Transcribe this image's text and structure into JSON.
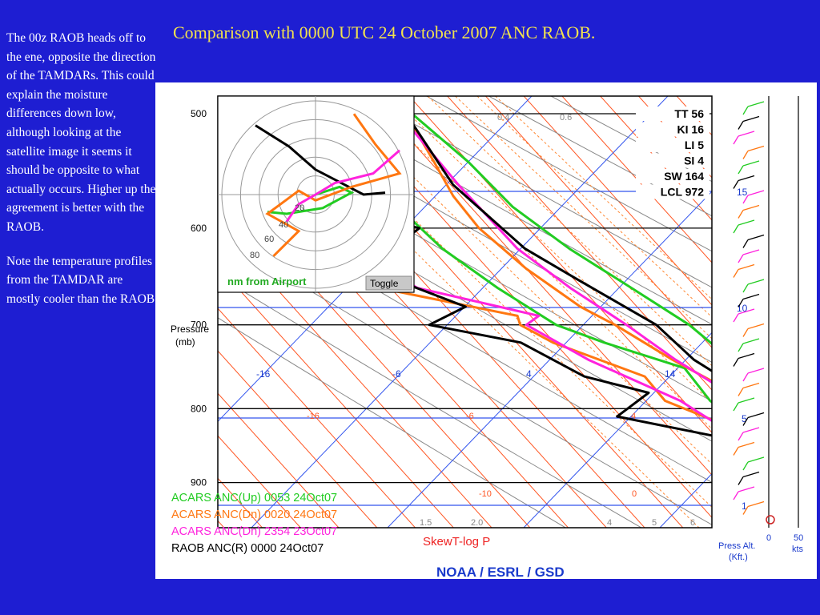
{
  "slide": {
    "title": "Comparison with 0000 UTC 24 October 2007 ANC RAOB.",
    "note1": "The 00z RAOB heads off to the ene, opposite the direction of the TAMDARs.  This could explain the moisture differences down low, although looking at the satellite image it seems it should be opposite to what actually occurs.  Higher up the agreement is better with the RAOB.",
    "note2": "Note the temperature profiles from the TAMDAR are mostly cooler than the RAOB."
  },
  "colors": {
    "background": "#1e1ed2",
    "title": "#f2e24e",
    "raob": "#000000",
    "acars_up": "#22cc22",
    "acars_dn_0020": "#ff7711",
    "acars_dn_2354": "#ff22dd",
    "isotherm": "#ff5522",
    "dry_adiabat": "#888888",
    "mixing_ratio": "#ff8833",
    "height_line": "#3355ee",
    "pressure_line": "#000000"
  },
  "chart_data": {
    "type": "line",
    "subtype": "skew-T log-P sounding",
    "title": "SkewT-log P",
    "footer": "NOAA / ESRL / GSD",
    "ylabel": "Pressure",
    "ylabel_unit": "(mb)",
    "ylim": [
      950,
      480
    ],
    "pressure_ticks": [
      "500",
      "600",
      "700",
      "800",
      "900"
    ],
    "isotherm_labels": [
      "-16",
      "-6",
      "4",
      "14"
    ],
    "mixing_ratio_labels": [
      "0.4",
      "0.6",
      "1.0",
      "1.5",
      "2.0",
      "4",
      "5",
      "6"
    ],
    "temp_labels_lower": [
      "-16",
      "-6",
      "4",
      "-10",
      "0"
    ],
    "indices": [
      {
        "name": "TT",
        "value": "56"
      },
      {
        "name": "KI",
        "value": "16"
      },
      {
        "name": "LI",
        "value": "5"
      },
      {
        "name": "SI",
        "value": "4"
      },
      {
        "name": "SW",
        "value": "164"
      },
      {
        "name": "LCL",
        "value": "972"
      }
    ],
    "hodograph": {
      "caption": "nm from Airport",
      "toggle_label": "Toggle",
      "range_labels": [
        "20",
        "40",
        "60",
        "80"
      ],
      "tracks": [
        {
          "name": "RAOB",
          "color": "#000000",
          "points": [
            [
              -50,
              -72
            ],
            [
              -22,
              -50
            ],
            [
              0,
              -26
            ],
            [
              40,
              0
            ],
            [
              58,
              -2
            ]
          ]
        },
        {
          "name": "ACARS Up",
          "color": "#22cc22",
          "points": [
            [
              0,
              0
            ],
            [
              20,
              -8
            ],
            [
              30,
              -2
            ],
            [
              6,
              14
            ],
            [
              -24,
              20
            ],
            [
              -40,
              18
            ]
          ]
        },
        {
          "name": "ACARS Dn 0020",
          "color": "#ff7711",
          "points": [
            [
              -35,
              64
            ],
            [
              -14,
              38
            ],
            [
              -40,
              20
            ],
            [
              -14,
              -4
            ],
            [
              0,
              6
            ],
            [
              30,
              -8
            ],
            [
              70,
              -22
            ],
            [
              50,
              -52
            ],
            [
              32,
              -84
            ]
          ]
        },
        {
          "name": "ACARS Dn 2354",
          "color": "#ff22dd",
          "points": [
            [
              -24,
              28
            ],
            [
              -14,
              10
            ],
            [
              0,
              0
            ],
            [
              16,
              -12
            ],
            [
              48,
              -22
            ],
            [
              70,
              -46
            ]
          ]
        }
      ]
    },
    "series": [
      {
        "name": "ACARS ANC(Up) 0053 24Oct07",
        "color": "#22cc22",
        "temp": [
          [
            500,
            -16.7
          ],
          [
            540,
            -15.0
          ],
          [
            580,
            -14.5
          ],
          [
            620,
            -12.0
          ],
          [
            660,
            -8.5
          ],
          [
            700,
            -5.3
          ],
          [
            720,
            -4.6
          ],
          [
            760,
            -3.3
          ],
          [
            800,
            -3.1
          ],
          [
            840,
            -2.1
          ],
          [
            870,
            -1.5
          ],
          [
            900,
            -0.5
          ],
          [
            925,
            -0.4
          ],
          [
            950,
            0.5
          ]
        ],
        "dew": [
          [
            500,
            -38.0
          ],
          [
            540,
            -31.4
          ],
          [
            580,
            -29.5
          ],
          [
            620,
            -28.6
          ],
          [
            660,
            -26.0
          ],
          [
            700,
            -22.7
          ],
          [
            720,
            -18.5
          ],
          [
            750,
            -11.0
          ],
          [
            790,
            -11.5
          ],
          [
            830,
            -9.4
          ],
          [
            860,
            -6.6
          ],
          [
            890,
            -6.4
          ],
          [
            920,
            -6.4
          ],
          [
            950,
            -3.3
          ]
        ]
      },
      {
        "name": "ACARS ANC(Dn) 0020 24Oct07",
        "color": "#ff7711",
        "temp": [
          [
            500,
            -17.5
          ],
          [
            540,
            -19.5
          ],
          [
            570,
            -21.0
          ],
          [
            600,
            -21.4
          ],
          [
            640,
            -20.0
          ],
          [
            680,
            -17.4
          ],
          [
            700,
            -15.0
          ],
          [
            740,
            -11.6
          ],
          [
            790,
            -6.5
          ],
          [
            830,
            -3.5
          ],
          [
            860,
            -3.7
          ],
          [
            900,
            -4.9
          ],
          [
            925,
            -4.8
          ],
          [
            950,
            -3.6
          ]
        ],
        "dew": [
          [
            540,
            -48.5
          ],
          [
            570,
            -48.5
          ],
          [
            600,
            -42.0
          ],
          [
            650,
            -46.6
          ],
          [
            690,
            -26.7
          ],
          [
            700,
            -27.4
          ],
          [
            720,
            -25.2
          ],
          [
            760,
            -17.2
          ],
          [
            790,
            -17.4
          ],
          [
            830,
            -11.0
          ],
          [
            870,
            -5.3
          ],
          [
            900,
            -4.7
          ],
          [
            920,
            -6.0
          ],
          [
            950,
            -4.5
          ]
        ]
      },
      {
        "name": "ACARS ANC(Dn) 2354 23Oct07",
        "color": "#ff22dd",
        "temp": [
          [
            500,
            -18.4
          ],
          [
            560,
            -19.0
          ],
          [
            620,
            -18.8
          ],
          [
            660,
            -16.5
          ],
          [
            700,
            -13.5
          ],
          [
            740,
            -11.2
          ],
          [
            790,
            -7.4
          ],
          [
            840,
            -5.0
          ],
          [
            870,
            -3.7
          ],
          [
            900,
            -3.6
          ],
          [
            920,
            -5.1
          ],
          [
            950,
            -6.9
          ]
        ],
        "dew": [
          [
            560,
            -48.9
          ],
          [
            580,
            -46.5
          ],
          [
            620,
            -40.5
          ],
          [
            660,
            -36.5
          ],
          [
            690,
            -23.9
          ],
          [
            700,
            -26.6
          ],
          [
            740,
            -22.6
          ],
          [
            790,
            -15.4
          ],
          [
            840,
            -12.0
          ],
          [
            870,
            -5.5
          ],
          [
            900,
            -7.7
          ],
          [
            925,
            -8.3
          ],
          [
            950,
            -7.5
          ]
        ]
      },
      {
        "name": "RAOB ANC(R) 0000 24Oct07",
        "color": "#000000",
        "temp": [
          [
            500,
            -17.5
          ],
          [
            560,
            -19.7
          ],
          [
            620,
            -17.8
          ],
          [
            650,
            -14.7
          ],
          [
            700,
            -9.6
          ],
          [
            740,
            -8.8
          ],
          [
            800,
            -4.3
          ],
          [
            850,
            -0.7
          ],
          [
            880,
            -1.7
          ],
          [
            900,
            -1.2
          ],
          [
            920,
            -2.1
          ],
          [
            935,
            -1.6
          ],
          [
            950,
            -1.4
          ]
        ],
        "dew": [
          [
            500,
            -62.1
          ],
          [
            560,
            -48.0
          ],
          [
            600,
            -29.2
          ],
          [
            640,
            -40.9
          ],
          [
            680,
            -32.4
          ],
          [
            700,
            -39.3
          ],
          [
            720,
            -29.4
          ],
          [
            760,
            -25.1
          ],
          [
            780,
            -18.6
          ],
          [
            810,
            -25.5
          ],
          [
            850,
            -9.4
          ],
          [
            880,
            -6.7
          ],
          [
            910,
            -8.8
          ],
          [
            935,
            -7.2
          ],
          [
            950,
            -5.9
          ]
        ]
      }
    ],
    "height_levels_kft": [
      "15",
      "10",
      "5",
      "1"
    ],
    "wind_axis": {
      "label_line1": "Press Alt.",
      "label_line2": "(Kft.)",
      "speed_ticks": [
        "0",
        "50"
      ],
      "speed_unit": "kts"
    }
  }
}
